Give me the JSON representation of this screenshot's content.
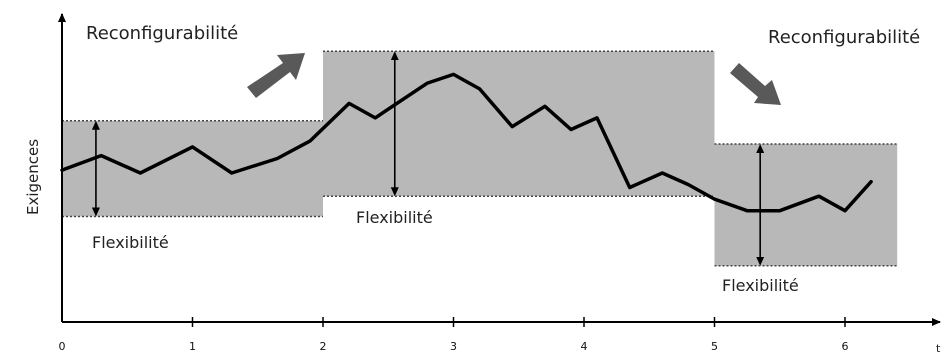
{
  "labels": {
    "y_axis": "Exigences",
    "x_axis_unit": "t",
    "reconfig_left": "Reconfigurabilité",
    "reconfig_right": "Reconfigurabilité",
    "flex_1": "Flexibilité",
    "flex_2": "Flexibilité",
    "flex_3": "Flexibilité"
  },
  "x_ticks": [
    "0",
    "1",
    "2",
    "3",
    "4",
    "5",
    "6"
  ],
  "colors": {
    "band_fill": "#b8b8b8",
    "curve": "#000000",
    "arrow_fill": "#595959",
    "axis": "#000000"
  },
  "bands": [
    {
      "x_start": 0,
      "x_end": 2,
      "y_low": 35,
      "y_high": 68
    },
    {
      "x_start": 2,
      "x_end": 5,
      "y_low": 42,
      "y_high": 92
    },
    {
      "x_start": 5,
      "x_end": 6.4,
      "y_low": 18,
      "y_high": 60
    }
  ],
  "curve": [
    [
      0,
      51
    ],
    [
      0.3,
      56
    ],
    [
      0.6,
      50
    ],
    [
      1,
      59
    ],
    [
      1.3,
      50
    ],
    [
      1.65,
      55
    ],
    [
      1.9,
      61
    ],
    [
      2.2,
      74
    ],
    [
      2.4,
      69
    ],
    [
      2.8,
      81
    ],
    [
      3,
      84
    ],
    [
      3.2,
      79
    ],
    [
      3.45,
      66
    ],
    [
      3.7,
      73
    ],
    [
      3.9,
      65
    ],
    [
      4.1,
      69
    ],
    [
      4.35,
      45
    ],
    [
      4.6,
      50
    ],
    [
      4.8,
      46
    ],
    [
      5,
      41
    ],
    [
      5.25,
      37
    ],
    [
      5.5,
      37
    ],
    [
      5.8,
      42
    ],
    [
      6,
      37
    ],
    [
      6.2,
      47
    ]
  ],
  "x_range": [
    0,
    6.6
  ],
  "y_range": [
    0,
    100
  ]
}
